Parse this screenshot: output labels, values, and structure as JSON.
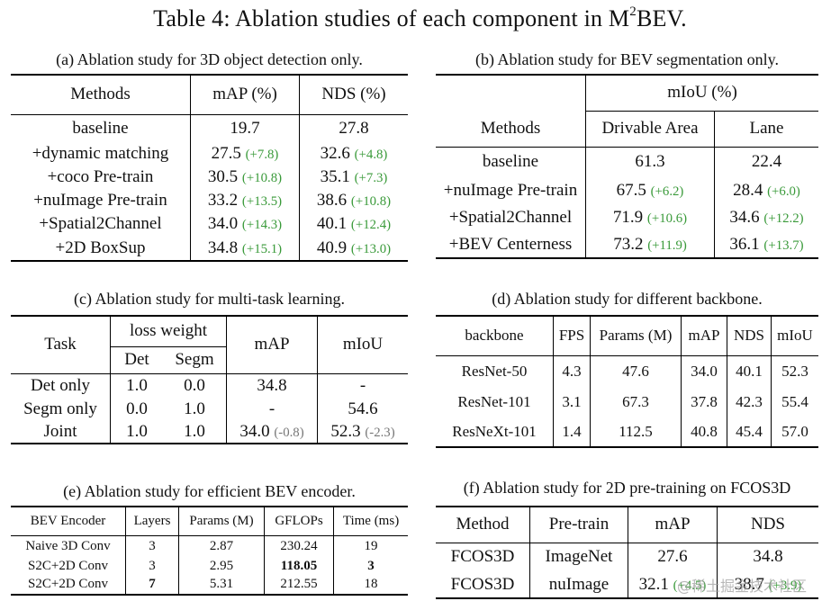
{
  "title": {
    "main": "Table 4: Ablation studies of each component in M",
    "sup": "2",
    "tail": "BEV."
  },
  "a": {
    "caption": "(a) Ablation study for 3D object detection only.",
    "headers": [
      "Methods",
      "mAP (%)",
      "NDS (%)"
    ],
    "rows": [
      {
        "m": "baseline",
        "map": "19.7",
        "map_d": "",
        "nds": "27.8",
        "nds_d": ""
      },
      {
        "m": "+dynamic matching",
        "map": "27.5",
        "map_d": "(+7.8)",
        "nds": "32.6",
        "nds_d": "(+4.8)"
      },
      {
        "m": "+coco Pre-train",
        "map": "30.5",
        "map_d": "(+10.8)",
        "nds": "35.1",
        "nds_d": "(+7.3)"
      },
      {
        "m": "+nuImage Pre-train",
        "map": "33.2",
        "map_d": "(+13.5)",
        "nds": "38.6",
        "nds_d": "(+10.8)"
      },
      {
        "m": "+Spatial2Channel",
        "map": "34.0",
        "map_d": "(+14.3)",
        "nds": "40.1",
        "nds_d": "(+12.4)"
      },
      {
        "m": "+2D BoxSup",
        "map": "34.8",
        "map_d": "(+15.1)",
        "nds": "40.9",
        "nds_d": "(+13.0)"
      }
    ]
  },
  "b": {
    "caption": "(b) Ablation study for BEV segmentation only.",
    "group": "mIoU (%)",
    "headers": [
      "Methods",
      "Drivable Area",
      "Lane"
    ],
    "rows": [
      {
        "m": "baseline",
        "da": "61.3",
        "da_d": "",
        "ln": "22.4",
        "ln_d": ""
      },
      {
        "m": "+nuImage Pre-train",
        "da": "67.5",
        "da_d": "(+6.2)",
        "ln": "28.4",
        "ln_d": "(+6.0)"
      },
      {
        "m": "+Spatial2Channel",
        "da": "71.9",
        "da_d": "(+10.6)",
        "ln": "34.6",
        "ln_d": "(+12.2)"
      },
      {
        "m": "+BEV Centerness",
        "da": "73.2",
        "da_d": "(+11.9)",
        "ln": "36.1",
        "ln_d": "(+13.7)"
      }
    ]
  },
  "c": {
    "caption": "(c) Ablation study for multi-task learning.",
    "headers": {
      "task": "Task",
      "lw": "loss weight",
      "det": "Det",
      "segm": "Segm",
      "map": "mAP",
      "miou": "mIoU"
    },
    "rows": [
      {
        "task": "Det only",
        "det": "1.0",
        "segm": "0.0",
        "map": "34.8",
        "map_d": "",
        "miou": "-",
        "miou_d": ""
      },
      {
        "task": "Segm only",
        "det": "0.0",
        "segm": "1.0",
        "map": "-",
        "map_d": "",
        "miou": "54.6",
        "miou_d": ""
      },
      {
        "task": "Joint",
        "det": "1.0",
        "segm": "1.0",
        "map": "34.0",
        "map_d": "(-0.8)",
        "miou": "52.3",
        "miou_d": "(-2.3)"
      }
    ]
  },
  "d": {
    "caption": "(d) Ablation study for different backbone.",
    "headers": [
      "backbone",
      "FPS",
      "Params (M)",
      "mAP",
      "NDS",
      "mIoU"
    ],
    "rows": [
      [
        "ResNet-50",
        "4.3",
        "47.6",
        "34.0",
        "40.1",
        "52.3"
      ],
      [
        "ResNet-101",
        "3.1",
        "67.3",
        "37.8",
        "42.3",
        "55.4"
      ],
      [
        "ResNeXt-101",
        "1.4",
        "112.5",
        "40.8",
        "45.4",
        "57.0"
      ]
    ]
  },
  "e": {
    "caption": "(e) Ablation study for efficient BEV encoder.",
    "headers": [
      "BEV Encoder",
      "Layers",
      "Params (M)",
      "GFLOPs",
      "Time (ms)"
    ],
    "rows": [
      [
        "Naive 3D Conv",
        "3",
        "2.87",
        "230.24",
        "19"
      ],
      [
        "S2C+2D Conv",
        "3",
        "2.95",
        "118.05",
        "3"
      ],
      [
        "S2C+2D Conv",
        "7",
        "5.31",
        "212.55",
        "18"
      ]
    ]
  },
  "f": {
    "caption": "(f) Ablation study for 2D pre-training on FCOS3D",
    "headers": [
      "Method",
      "Pre-train",
      "mAP",
      "NDS"
    ],
    "rows": [
      {
        "m": "FCOS3D",
        "pt": "ImageNet",
        "map": "27.6",
        "map_d": "",
        "nds": "34.8",
        "nds_d": ""
      },
      {
        "m": "FCOS3D",
        "pt": "nuImage",
        "map": "32.1",
        "map_d": "(+4.5)",
        "nds": "38.7",
        "nds_d": "(+3.9)"
      }
    ]
  },
  "watermark": "@稀土掘金技术社区",
  "colors": {
    "gain": "#3a9a3a",
    "loss": "#777777"
  }
}
